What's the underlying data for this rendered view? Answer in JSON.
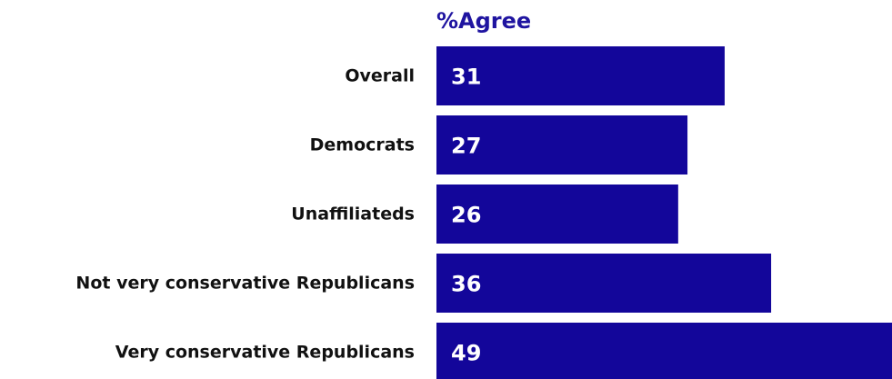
{
  "chart_data": {
    "type": "bar",
    "orientation": "horizontal",
    "title": "%Agree",
    "categories": [
      "Overall",
      "Democrats",
      "Unaffiliateds",
      "Not very conservative Republicans",
      "Very conservative Republicans"
    ],
    "values": [
      31,
      27,
      26,
      36,
      49
    ],
    "xlim": [
      0,
      49
    ],
    "grid": false,
    "legend": "none",
    "data_labels": true
  },
  "colors": {
    "bar": "#13069A",
    "title": "#1F14A0",
    "label_text": "#111111",
    "value_text": "#FFFFFF"
  }
}
